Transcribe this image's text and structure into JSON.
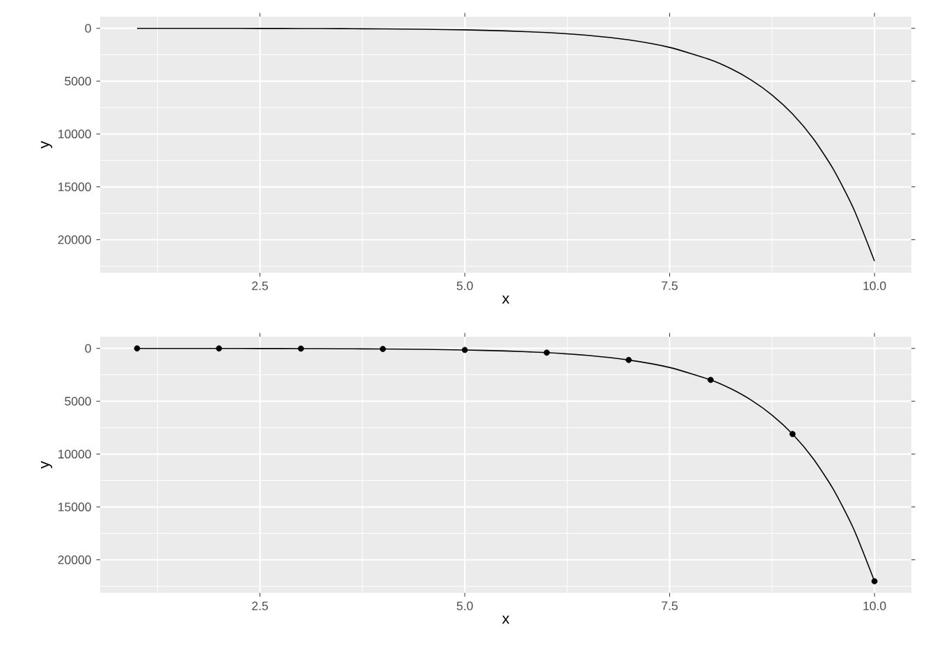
{
  "chart_data": [
    {
      "type": "line",
      "xlabel": "x",
      "ylabel": "y",
      "xlim": [
        0.55,
        10.45
      ],
      "ylim": [
        23127,
        -1098
      ],
      "xticks": [
        {
          "value": 2.5,
          "label": "2.5"
        },
        {
          "value": 5,
          "label": "5.0"
        },
        {
          "value": 7.5,
          "label": "7.5"
        },
        {
          "value": 10,
          "label": "10.0"
        }
      ],
      "yticks": [
        0,
        5000,
        10000,
        15000,
        20000
      ],
      "grid": true,
      "series": [
        {
          "type": "line",
          "color": "#000000",
          "x": [
            1,
            1.5,
            2,
            2.5,
            3,
            3.5,
            4,
            4.5,
            5,
            5.5,
            6,
            6.5,
            7,
            7.5,
            8,
            8.25,
            8.5,
            8.75,
            9,
            9.25,
            9.5,
            9.75,
            10
          ],
          "values": [
            3,
            4,
            7,
            12,
            20,
            33,
            55,
            90,
            148,
            245,
            403,
            665,
            1097,
            1808,
            2981,
            3828,
            4915,
            6311,
            8103,
            10405,
            13360,
            17154,
            22026
          ]
        }
      ]
    },
    {
      "type": "line",
      "xlabel": "x",
      "ylabel": "y",
      "xlim": [
        0.55,
        10.45
      ],
      "ylim": [
        23127,
        -1098
      ],
      "xticks": [
        {
          "value": 2.5,
          "label": "2.5"
        },
        {
          "value": 5,
          "label": "5.0"
        },
        {
          "value": 7.5,
          "label": "7.5"
        },
        {
          "value": 10,
          "label": "10.0"
        }
      ],
      "yticks": [
        0,
        5000,
        10000,
        15000,
        20000
      ],
      "grid": true,
      "series": [
        {
          "type": "line",
          "color": "#000000",
          "x": [
            1,
            1.5,
            2,
            2.5,
            3,
            3.5,
            4,
            4.5,
            5,
            5.5,
            6,
            6.5,
            7,
            7.5,
            8,
            8.25,
            8.5,
            8.75,
            9,
            9.25,
            9.5,
            9.75,
            10
          ],
          "values": [
            3,
            4,
            7,
            12,
            20,
            33,
            55,
            90,
            148,
            245,
            403,
            665,
            1097,
            1808,
            2981,
            3828,
            4915,
            6311,
            8103,
            10405,
            13360,
            17154,
            22026
          ]
        },
        {
          "type": "scatter",
          "marker": "circle",
          "color": "#000000",
          "x": [
            1,
            2,
            3,
            4,
            5,
            6,
            7,
            8,
            9,
            10
          ],
          "values": [
            3,
            7,
            20,
            55,
            148,
            403,
            1097,
            2981,
            8103,
            22026
          ]
        }
      ]
    }
  ]
}
